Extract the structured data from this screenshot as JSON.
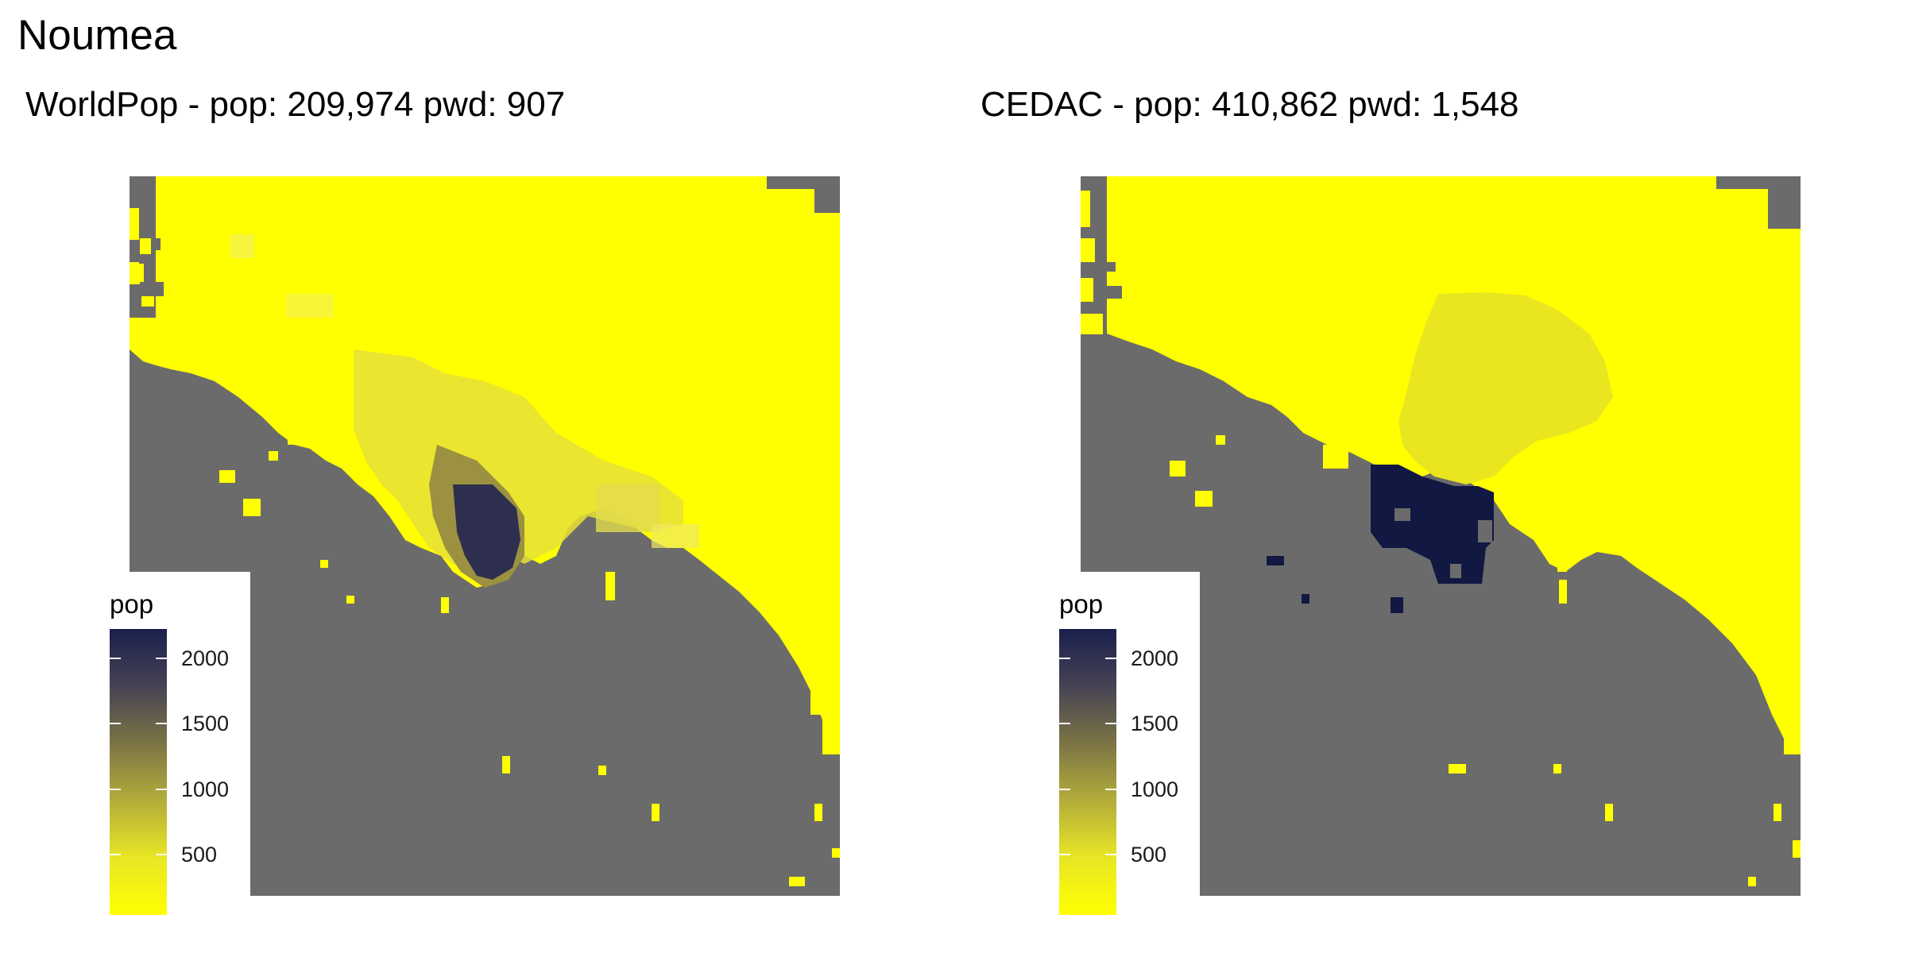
{
  "title": "Noumea",
  "panels": [
    {
      "id": "worldpop",
      "title": "WorldPop - pop: 209,974 pwd: 907",
      "legend": {
        "title": "pop",
        "ticks": [
          "500",
          "1000",
          "1500",
          "2000"
        ]
      }
    },
    {
      "id": "cedac",
      "title": "CEDAC - pop: 410,862 pwd: 1,548",
      "legend": {
        "title": "pop",
        "ticks": [
          "500",
          "1000",
          "1500",
          "2000"
        ]
      }
    }
  ],
  "colors": {
    "land_nodata": "#6b6b6b",
    "low": "#ffff00",
    "high": "#1a1f4d",
    "background": "#ffffff"
  }
}
